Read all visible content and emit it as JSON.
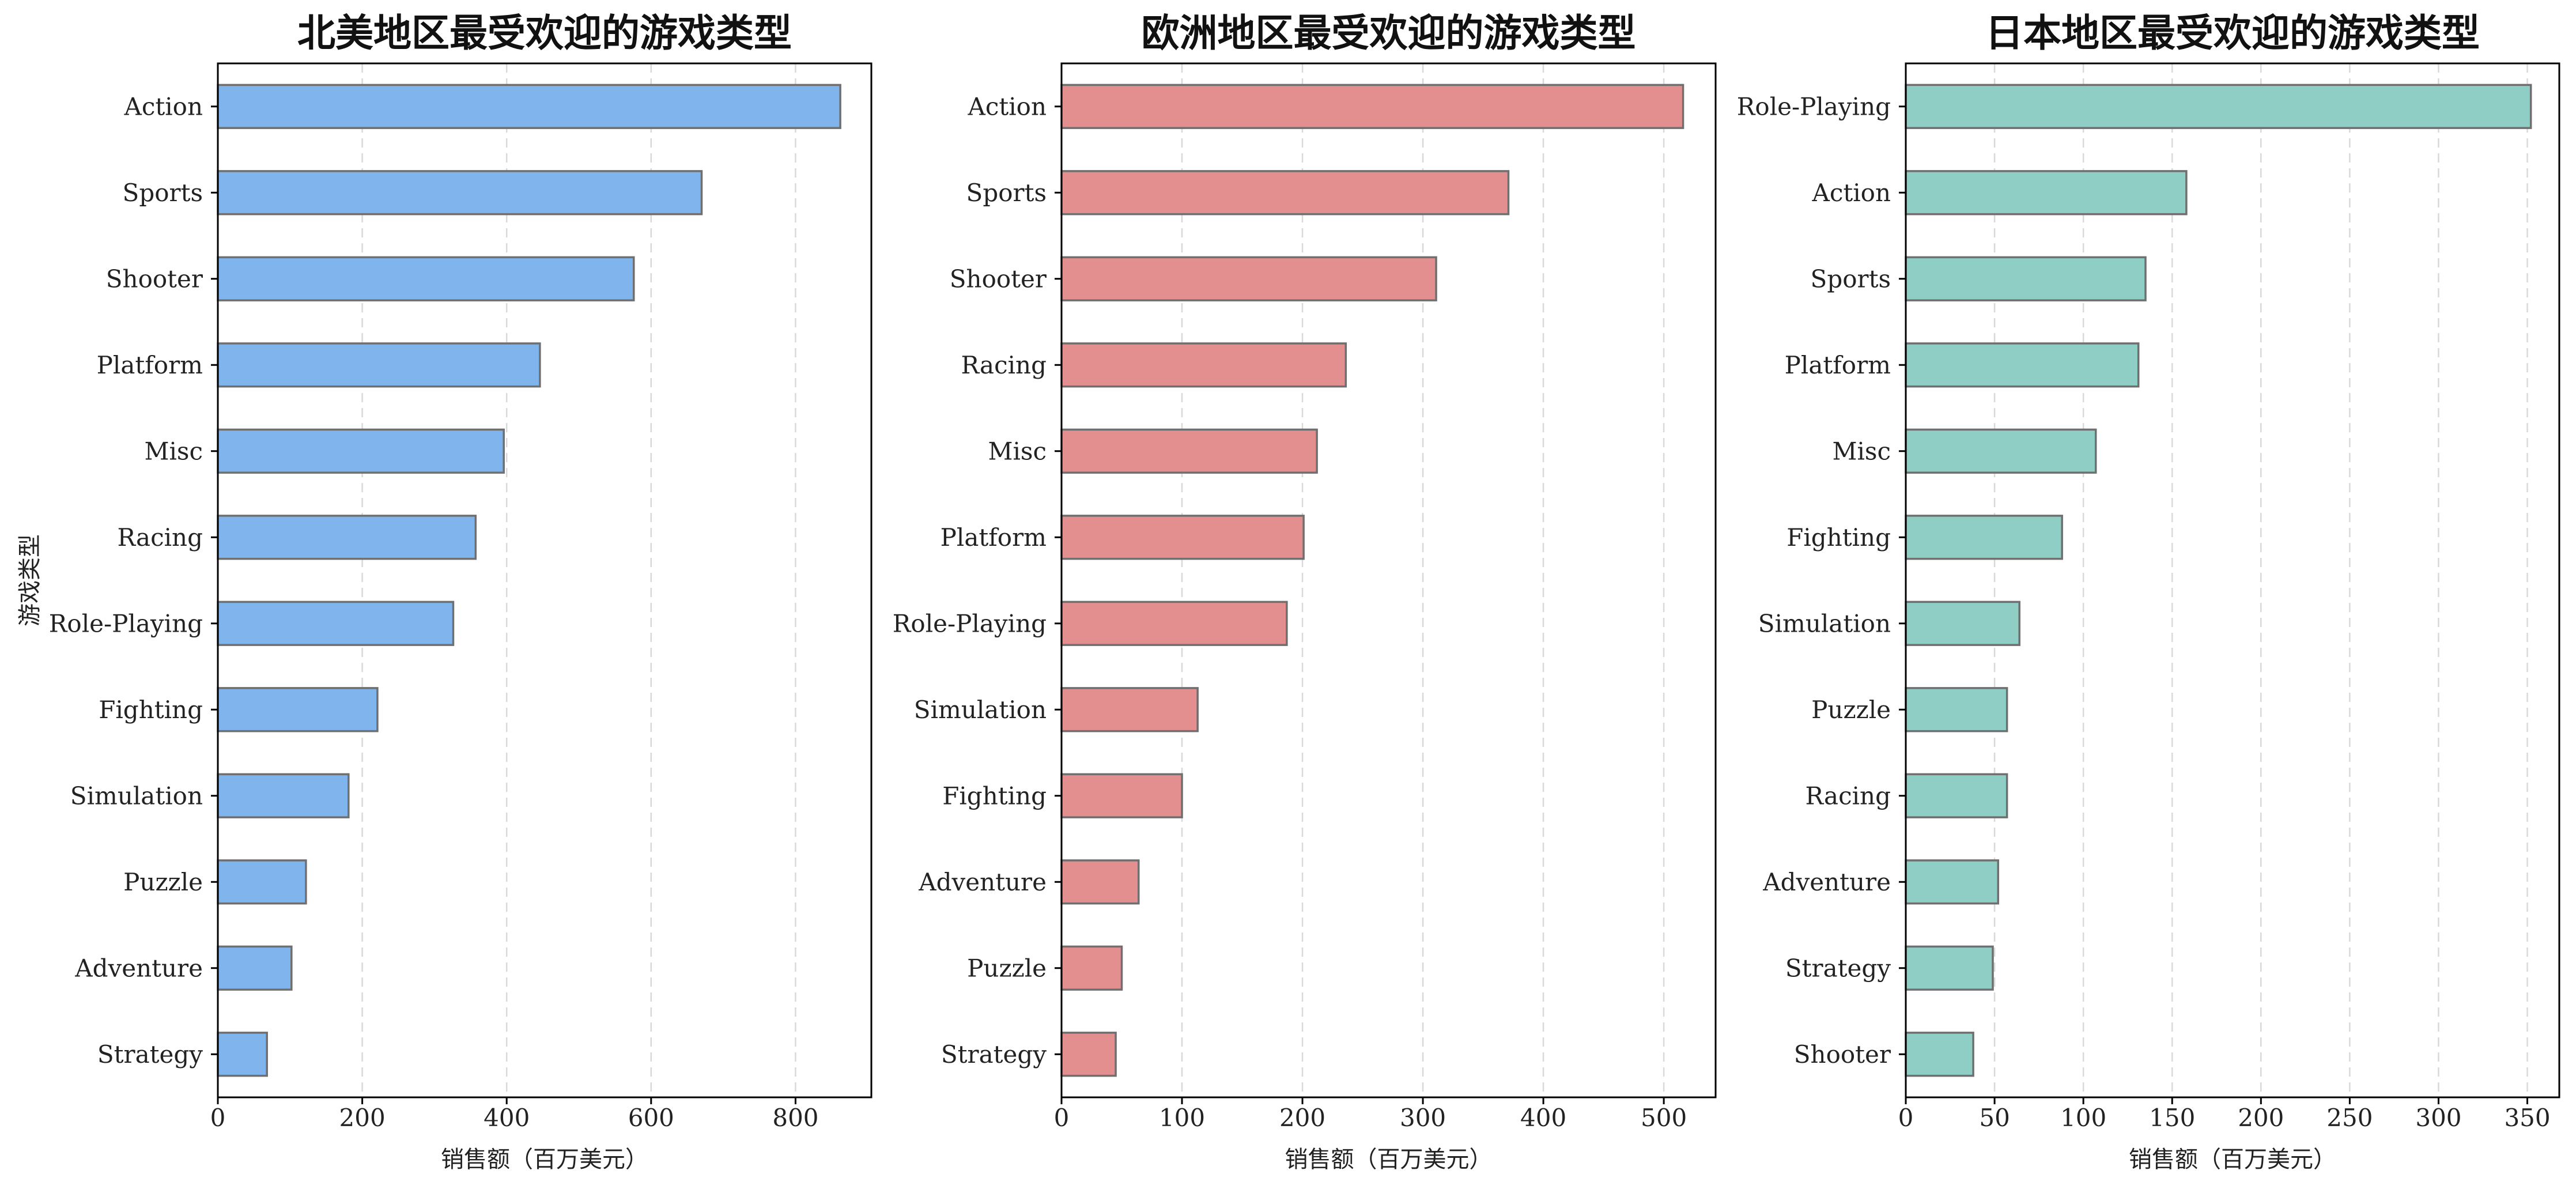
{
  "chart_data": [
    {
      "type": "bar",
      "orientation": "horizontal",
      "title": "北美地区最受欢迎的游戏类型",
      "xlabel": "销售额（百万美元）",
      "ylabel": "游戏类型",
      "color": "#7fb5ec",
      "xlim": [
        0,
        905
      ],
      "xticks": [
        0,
        200,
        400,
        600,
        800
      ],
      "grid": "x-dashed",
      "categories": [
        "Action",
        "Sports",
        "Shooter",
        "Platform",
        "Misc",
        "Racing",
        "Role-Playing",
        "Fighting",
        "Simulation",
        "Puzzle",
        "Adventure",
        "Strategy"
      ],
      "values": [
        862,
        670,
        576,
        446,
        396,
        357,
        326,
        221,
        181,
        122,
        102,
        68
      ]
    },
    {
      "type": "bar",
      "orientation": "horizontal",
      "title": "欧洲地区最受欢迎的游戏类型",
      "xlabel": "销售额（百万美元）",
      "ylabel": "",
      "color": "#e38f90",
      "xlim": [
        0,
        543
      ],
      "xticks": [
        0,
        100,
        200,
        300,
        400,
        500
      ],
      "grid": "x-dashed",
      "categories": [
        "Action",
        "Sports",
        "Shooter",
        "Racing",
        "Misc",
        "Platform",
        "Role-Playing",
        "Simulation",
        "Fighting",
        "Adventure",
        "Puzzle",
        "Strategy"
      ],
      "values": [
        516,
        371,
        311,
        236,
        212,
        201,
        187,
        113,
        100,
        64,
        50,
        45
      ]
    },
    {
      "type": "bar",
      "orientation": "horizontal",
      "title": "日本地区最受欢迎的游戏类型",
      "xlabel": "销售额（百万美元）",
      "ylabel": "",
      "color": "#8ecec5",
      "xlim": [
        0,
        368
      ],
      "xticks": [
        0,
        50,
        100,
        150,
        200,
        250,
        300,
        350
      ],
      "grid": "x-dashed",
      "categories": [
        "Role-Playing",
        "Action",
        "Sports",
        "Platform",
        "Misc",
        "Fighting",
        "Simulation",
        "Puzzle",
        "Racing",
        "Adventure",
        "Strategy",
        "Shooter"
      ],
      "values": [
        352,
        158,
        135,
        131,
        107,
        88,
        64,
        57,
        57,
        52,
        49,
        38
      ]
    }
  ]
}
